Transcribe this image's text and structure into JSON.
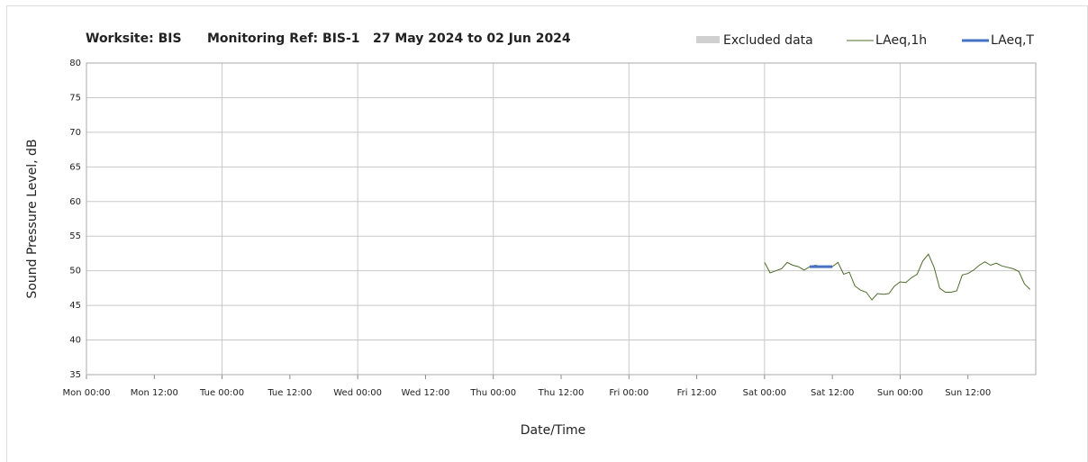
{
  "chart_data": {
    "type": "line",
    "title": [
      "Worksite: BIS",
      "Monitoring Ref: BIS-1",
      "27 May 2024 to 02 Jun 2024"
    ],
    "xlabel": "Date/Time",
    "ylabel": "Sound Pressure Level, dB",
    "legend_extra": {
      "name": "Excluded data",
      "color": "#d0d0d0"
    },
    "xlim": [
      0,
      168
    ],
    "ylim": [
      35,
      80
    ],
    "xticks": [
      {
        "value": 0,
        "label": "Mon 00:00"
      },
      {
        "value": 12,
        "label": "Mon 12:00"
      },
      {
        "value": 24,
        "label": "Tue 00:00"
      },
      {
        "value": 36,
        "label": "Tue 12:00"
      },
      {
        "value": 48,
        "label": "Wed 00:00"
      },
      {
        "value": 60,
        "label": "Wed 12:00"
      },
      {
        "value": 72,
        "label": "Thu 00:00"
      },
      {
        "value": 84,
        "label": "Thu 12:00"
      },
      {
        "value": 96,
        "label": "Fri 00:00"
      },
      {
        "value": 108,
        "label": "Fri 12:00"
      },
      {
        "value": 120,
        "label": "Sat 00:00"
      },
      {
        "value": 132,
        "label": "Sat 12:00"
      },
      {
        "value": 144,
        "label": "Sun 00:00"
      },
      {
        "value": 156,
        "label": "Sun 12:00"
      }
    ],
    "yticks": [
      35,
      40,
      45,
      50,
      55,
      60,
      65,
      70,
      75,
      80
    ],
    "grid": true,
    "series": [
      {
        "name": "LAeq,1h",
        "color": "#4f6b2c",
        "width": 1,
        "x": [
          120,
          121,
          122,
          123,
          124,
          125,
          126,
          127,
          128,
          129,
          130,
          131,
          132,
          133,
          134,
          135,
          136,
          137,
          138,
          139,
          140,
          141,
          142,
          143,
          144,
          145,
          146,
          147,
          148,
          149,
          150,
          151,
          152,
          153,
          154,
          155,
          156,
          157,
          158,
          159,
          160,
          161,
          162,
          163,
          164,
          165,
          166,
          167
        ],
        "values": [
          51.2,
          49.7,
          50.0,
          50.3,
          51.2,
          50.8,
          50.6,
          50.1,
          50.6,
          50.8,
          50.6,
          50.6,
          50.6,
          51.2,
          49.5,
          49.8,
          47.8,
          47.2,
          46.9,
          45.8,
          46.7,
          46.6,
          46.7,
          47.8,
          48.4,
          48.3,
          49.0,
          49.5,
          51.4,
          52.4,
          50.5,
          47.5,
          46.9,
          46.9,
          47.1,
          49.4,
          49.6,
          50.1,
          50.8,
          51.3,
          50.8,
          51.1,
          50.7,
          50.5,
          50.3,
          49.9,
          48.1,
          47.3
        ]
      },
      {
        "name": "LAeq,T",
        "color": "#4472c4",
        "width": 3,
        "x": [
          128,
          132
        ],
        "values": [
          50.6,
          50.6
        ]
      }
    ]
  }
}
